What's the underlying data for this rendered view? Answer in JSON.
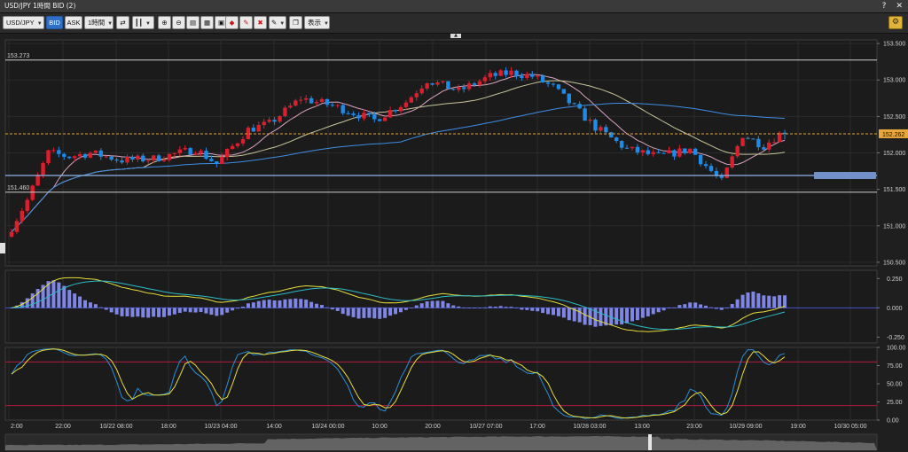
{
  "window": {
    "title": "USD/JPY 1時間 BID (2)",
    "help_label": "?",
    "close_label": "✕"
  },
  "toolbar": {
    "symbol": "USD/JPY",
    "bid_label": "BID",
    "ask_label": "ASK",
    "timeframe": "1時間",
    "display_label": "表示",
    "icons": [
      "swap-icon",
      "candlestick-icon",
      "zoom-in-icon",
      "zoom-out-icon",
      "layout-1-icon",
      "layout-2-icon",
      "layout-3-icon",
      "order-icon",
      "order-edit-icon",
      "order-cancel-icon",
      "draw-tool-icon",
      "screenshot-icon",
      "gear-icon"
    ]
  },
  "colors": {
    "bg": "#1f1f1f",
    "up": "#dc1e2d",
    "down": "#1f8be8",
    "ma_fast": "#d9a3bf",
    "ma_mid": "#c9c69a",
    "ma_slow": "#3f8de6",
    "macd": "#e6dd3a",
    "signal": "#2bbcc8",
    "hist": "#7f86e6",
    "price_line": "#e7a73a",
    "level": "#d0d0d0",
    "stoch_band": "#b01b3f"
  },
  "chart_data": [
    {
      "type": "candlestick",
      "title": "USD/JPY 1時間 BID",
      "y_range": [
        150.45,
        153.55
      ],
      "y_ticks": [
        "153.500",
        "153.000",
        "152.500",
        "152.000",
        "151.500",
        "151.000",
        "150.500"
      ],
      "x_ticks": [
        "2:00",
        "22:00",
        "10/22 08:00",
        "18:00",
        "10/23 04:00",
        "14:00",
        "10/24 00:00",
        "10:00",
        "20:00",
        "10/27 07:00",
        "17:00",
        "10/28 03:00",
        "13:00",
        "23:00",
        "10/29 09:00",
        "19:00",
        "10/30 05:00"
      ],
      "current_price_label": "152.262",
      "current_price": 152.262,
      "levels": [
        {
          "label": "153.273",
          "value": 153.273
        },
        {
          "label": "151.460",
          "value": 151.46
        },
        {
          "label": "",
          "value": 151.69
        }
      ],
      "series": [
        {
          "name": "",
          "kind": "ohlc",
          "bars": 148,
          "start_open": 150.85,
          "end_close": 152.26
        },
        {
          "name": "",
          "kind": "sma",
          "period": 9
        },
        {
          "name": "",
          "kind": "sma",
          "period": 26
        },
        {
          "name": "",
          "kind": "sma",
          "period": 75
        }
      ]
    },
    {
      "type": "line",
      "indicator": "MACD",
      "y_range": [
        -0.3,
        0.32
      ],
      "y_ticks": [
        "0.250",
        "0.000",
        "-0.250"
      ]
    },
    {
      "type": "line",
      "indicator": "Stochastics",
      "y_range": [
        0,
        100
      ],
      "y_ticks": [
        "100.00",
        "75.00",
        "50.00",
        "25.00",
        "0.00"
      ],
      "bands": [
        80,
        20
      ]
    }
  ]
}
